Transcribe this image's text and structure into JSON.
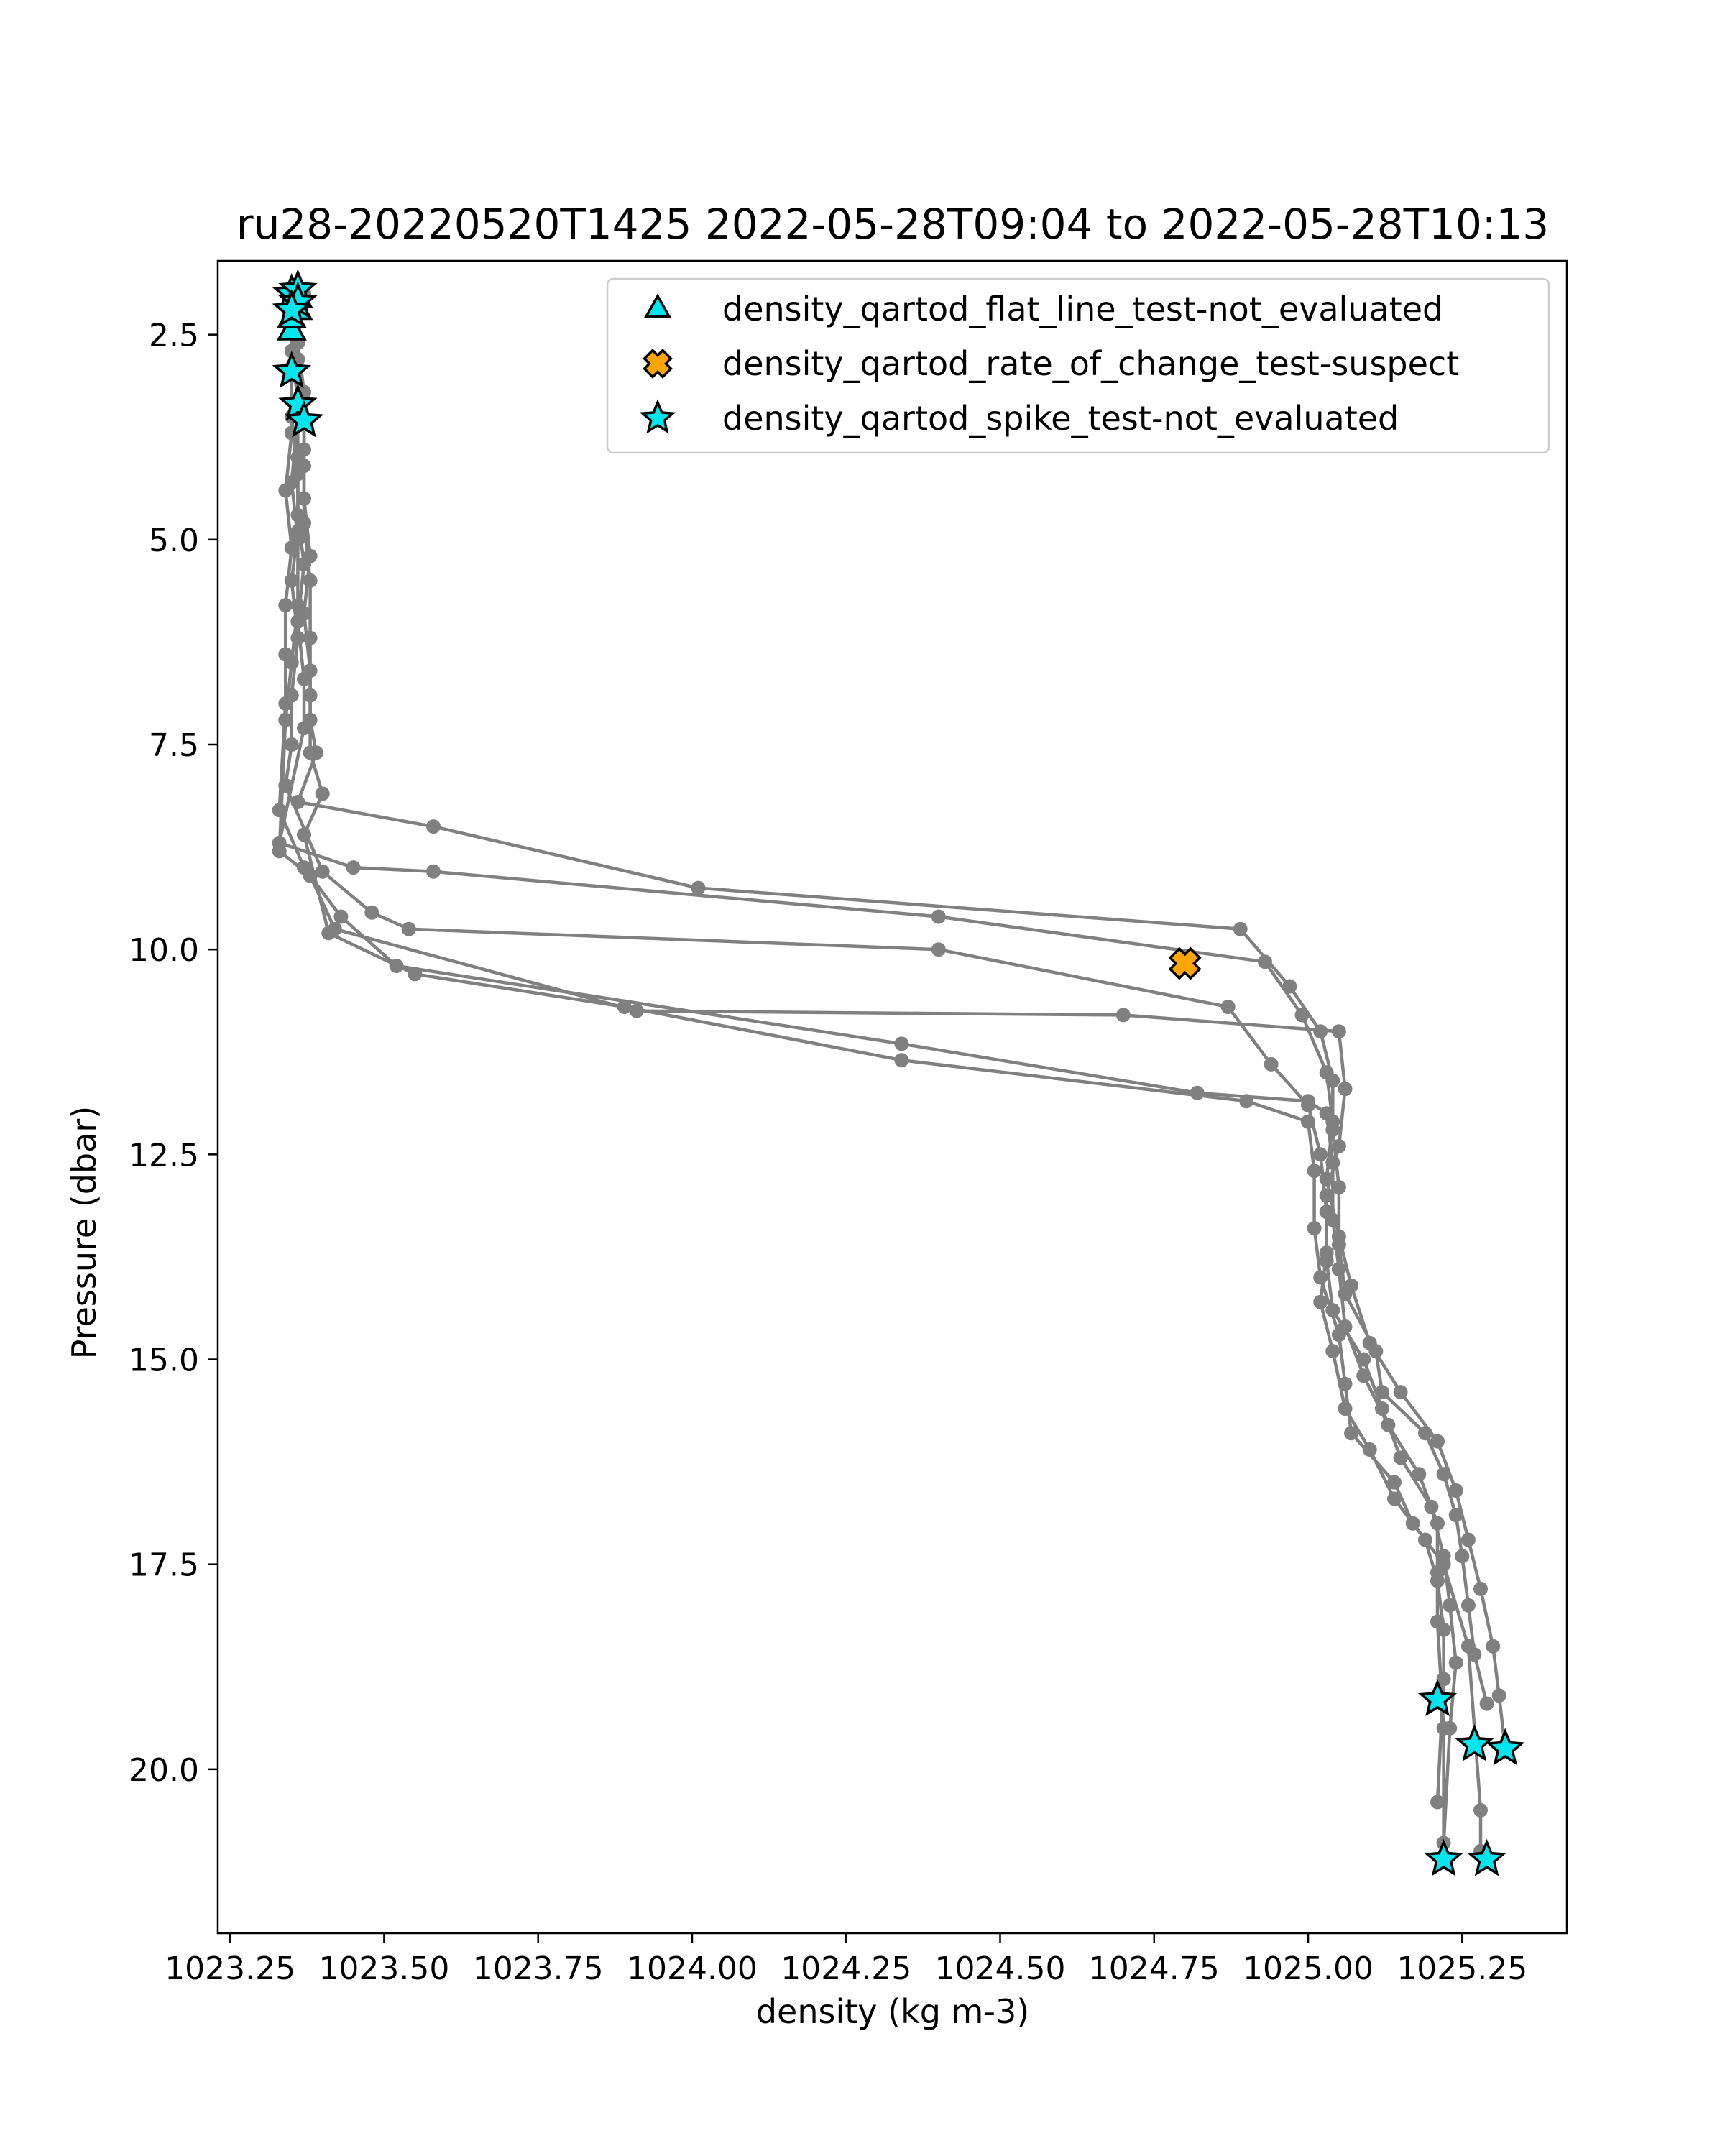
{
  "chart_data": {
    "type": "scatter",
    "title": "ru28-20220520T1425 2022-05-28T09:04 to 2022-05-28T10:13",
    "xlabel": "density (kg m-3)",
    "ylabel": "Pressure (dbar)",
    "xlim": [
      1023.23,
      1025.42
    ],
    "ylim": [
      22.0,
      1.6
    ],
    "y_inverted": true,
    "grid": false,
    "legend_position": "top-right",
    "x_ticks": [
      "1023.25",
      "1023.50",
      "1023.75",
      "1024.00",
      "1024.25",
      "1024.50",
      "1024.75",
      "1025.00",
      "1025.25"
    ],
    "y_ticks": [
      "2.5",
      "5.0",
      "7.5",
      "10.0",
      "12.5",
      "15.0",
      "17.5",
      "20.0"
    ],
    "profile_color": "#808080",
    "series": [
      {
        "name": "density_qartod_flat_line_test-not_evaluated",
        "marker": "triangle",
        "color": "#00e5ee",
        "x": [
          1023.35,
          1023.35,
          1023.36,
          1023.36
        ],
        "y": [
          2.45,
          2.3,
          2.2,
          2.05
        ]
      },
      {
        "name": "density_qartod_rate_of_change_test-suspect",
        "marker": "x",
        "color": "#ffa500",
        "x": [
          1024.8
        ],
        "y": [
          10.17
        ]
      },
      {
        "name": "density_qartod_spike_test-not_evaluated",
        "marker": "star",
        "color": "#00e5ee",
        "x": [
          1023.35,
          1023.36,
          1023.36,
          1023.35,
          1023.35,
          1023.36,
          1023.37,
          1025.21,
          1025.27,
          1025.32,
          1025.22,
          1025.29
        ],
        "y": [
          2.0,
          1.95,
          2.1,
          2.2,
          2.95,
          3.35,
          3.55,
          19.15,
          19.7,
          19.75,
          21.1,
          21.1
        ]
      }
    ],
    "profiles": [
      {
        "x": [
          1023.36,
          1023.36,
          1023.37,
          1023.37,
          1023.37,
          1023.38,
          1023.37,
          1023.38,
          1023.38,
          1023.39,
          1023.36,
          1023.58,
          1024.01,
          1024.89,
          1024.97,
          1025.02,
          1025.04,
          1025.04,
          1025.05,
          1025.05,
          1025.06,
          1025.11,
          1025.12,
          1025.19,
          1025.22,
          1025.24,
          1025.25,
          1025.26,
          1025.27,
          1025.29
        ],
        "y": [
          2.0,
          2.6,
          3.2,
          3.9,
          4.5,
          5.2,
          5.9,
          6.6,
          7.2,
          7.6,
          8.2,
          8.5,
          9.25,
          9.75,
          10.45,
          11.0,
          11.6,
          12.2,
          12.9,
          13.6,
          14.2,
          14.9,
          15.4,
          15.9,
          16.4,
          16.9,
          17.4,
          18.0,
          18.6,
          19.2
        ]
      },
      {
        "x": [
          1023.35,
          1023.35,
          1023.36,
          1023.36,
          1023.36,
          1023.37,
          1023.36,
          1023.37,
          1023.37,
          1023.33,
          1023.45,
          1023.58,
          1024.4,
          1024.93,
          1024.99,
          1025.03,
          1025.04,
          1025.03,
          1025.05,
          1025.07,
          1025.1,
          1025.15,
          1025.21,
          1025.24,
          1025.26,
          1025.28,
          1025.3,
          1025.31,
          1025.32
        ],
        "y": [
          2.1,
          2.7,
          3.3,
          4.0,
          4.7,
          5.3,
          6.0,
          6.7,
          7.3,
          8.7,
          9.0,
          9.05,
          9.6,
          10.15,
          10.8,
          11.5,
          12.1,
          12.8,
          13.5,
          14.1,
          14.8,
          15.4,
          16.0,
          16.6,
          17.2,
          17.8,
          18.5,
          19.1,
          19.75
        ]
      },
      {
        "x": [
          1023.36,
          1023.35,
          1023.35,
          1023.36,
          1023.36,
          1023.35,
          1023.36,
          1023.35,
          1023.35,
          1023.34,
          1023.4,
          1023.48,
          1023.54,
          1024.4,
          1024.87,
          1024.94,
          1025.0,
          1025.02,
          1025.03,
          1025.03,
          1025.04,
          1025.09,
          1025.12,
          1025.15,
          1025.2,
          1025.22,
          1025.23,
          1025.24,
          1025.23,
          1025.22
        ],
        "y": [
          2.2,
          2.9,
          3.5,
          4.2,
          4.9,
          5.5,
          6.2,
          6.9,
          7.5,
          8.0,
          9.05,
          9.55,
          9.75,
          10.0,
          10.7,
          11.4,
          11.9,
          12.5,
          13.2,
          13.8,
          14.4,
          15.0,
          15.6,
          16.2,
          16.8,
          17.4,
          18.0,
          18.7,
          19.5,
          20.9
        ]
      },
      {
        "x": [
          1023.35,
          1023.36,
          1023.36,
          1023.35,
          1023.36,
          1023.36,
          1023.35,
          1023.34,
          1023.33,
          1023.38,
          1023.42,
          1023.91,
          1024.7,
          1025.05,
          1025.06,
          1025.05,
          1025.03,
          1025.03,
          1025.02,
          1025.04,
          1025.06,
          1025.1,
          1025.14,
          1025.19,
          1025.21,
          1025.22,
          1025.22,
          1025.21
        ],
        "y": [
          1.95,
          2.8,
          3.5,
          4.3,
          5.0,
          5.8,
          6.5,
          7.2,
          8.8,
          9.1,
          9.75,
          10.75,
          10.8,
          11.0,
          11.7,
          12.4,
          13.0,
          13.7,
          14.3,
          14.9,
          15.6,
          16.1,
          16.7,
          17.2,
          17.7,
          18.3,
          18.9,
          20.4
        ]
      },
      {
        "x": [
          1023.35,
          1023.35,
          1023.35,
          1023.34,
          1023.35,
          1023.34,
          1023.34,
          1023.34,
          1023.33,
          1023.37,
          1023.43,
          1023.52,
          1024.34,
          1024.82,
          1025.0,
          1025.03,
          1025.04,
          1025.04,
          1025.05,
          1025.06,
          1025.09,
          1025.13,
          1025.18,
          1025.21,
          1025.21,
          1025.21,
          1025.22,
          1025.22
        ],
        "y": [
          2.3,
          3.0,
          3.7,
          4.4,
          5.1,
          5.8,
          6.4,
          7.0,
          8.3,
          9.0,
          9.6,
          10.2,
          11.15,
          11.75,
          11.85,
          12.0,
          12.6,
          13.3,
          13.9,
          14.6,
          15.2,
          15.8,
          16.4,
          17.0,
          17.6,
          18.2,
          19.5,
          21.1
        ]
      },
      {
        "x": [
          1023.37,
          1023.36,
          1023.37,
          1023.37,
          1023.37,
          1023.38,
          1023.38,
          1023.38,
          1023.38,
          1023.4,
          1023.37,
          1023.41,
          1023.55,
          1023.89,
          1024.34,
          1024.9,
          1025.0,
          1025.01,
          1025.01,
          1025.02,
          1025.05,
          1025.06,
          1025.07,
          1025.14,
          1025.17,
          1025.22,
          1025.26,
          1025.28,
          1025.28
        ],
        "y": [
          2.0,
          2.6,
          3.3,
          4.1,
          4.8,
          5.5,
          6.2,
          6.9,
          7.6,
          8.1,
          8.6,
          9.8,
          10.3,
          10.7,
          11.35,
          11.85,
          12.1,
          12.7,
          13.4,
          14.0,
          14.7,
          15.3,
          15.9,
          16.5,
          17.0,
          17.5,
          18.5,
          20.5,
          21.0
        ]
      }
    ]
  }
}
